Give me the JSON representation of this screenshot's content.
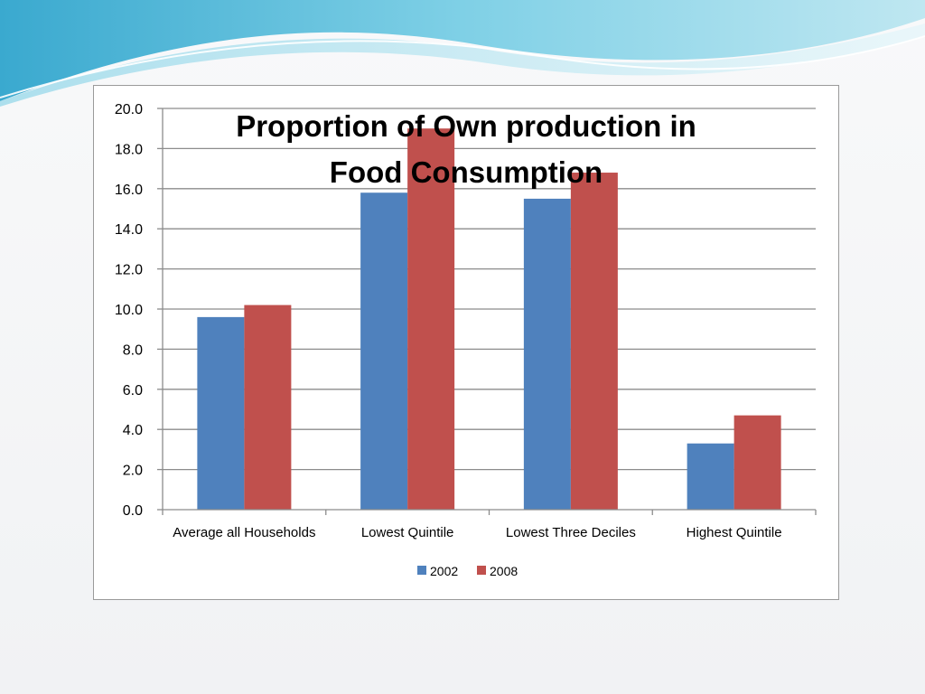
{
  "chart_data": {
    "type": "bar",
    "title_lines": [
      "Proportion of Own production in",
      "Food Consumption"
    ],
    "categories": [
      "Average all Households",
      "Lowest Quintile",
      "Lowest Three Deciles",
      "Highest Quintile"
    ],
    "series": [
      {
        "name": "2002",
        "color": "#4f81bd",
        "values": [
          9.6,
          15.8,
          15.5,
          3.3
        ]
      },
      {
        "name": "2008",
        "color": "#c0504d",
        "values": [
          10.2,
          19.0,
          16.8,
          4.7
        ]
      }
    ],
    "ylim": [
      0,
      20
    ],
    "y_ticks": [
      "0.0",
      "2.0",
      "4.0",
      "6.0",
      "8.0",
      "10.0",
      "12.0",
      "14.0",
      "16.0",
      "18.0",
      "20.0"
    ],
    "grid": true,
    "legend_position": "bottom"
  }
}
